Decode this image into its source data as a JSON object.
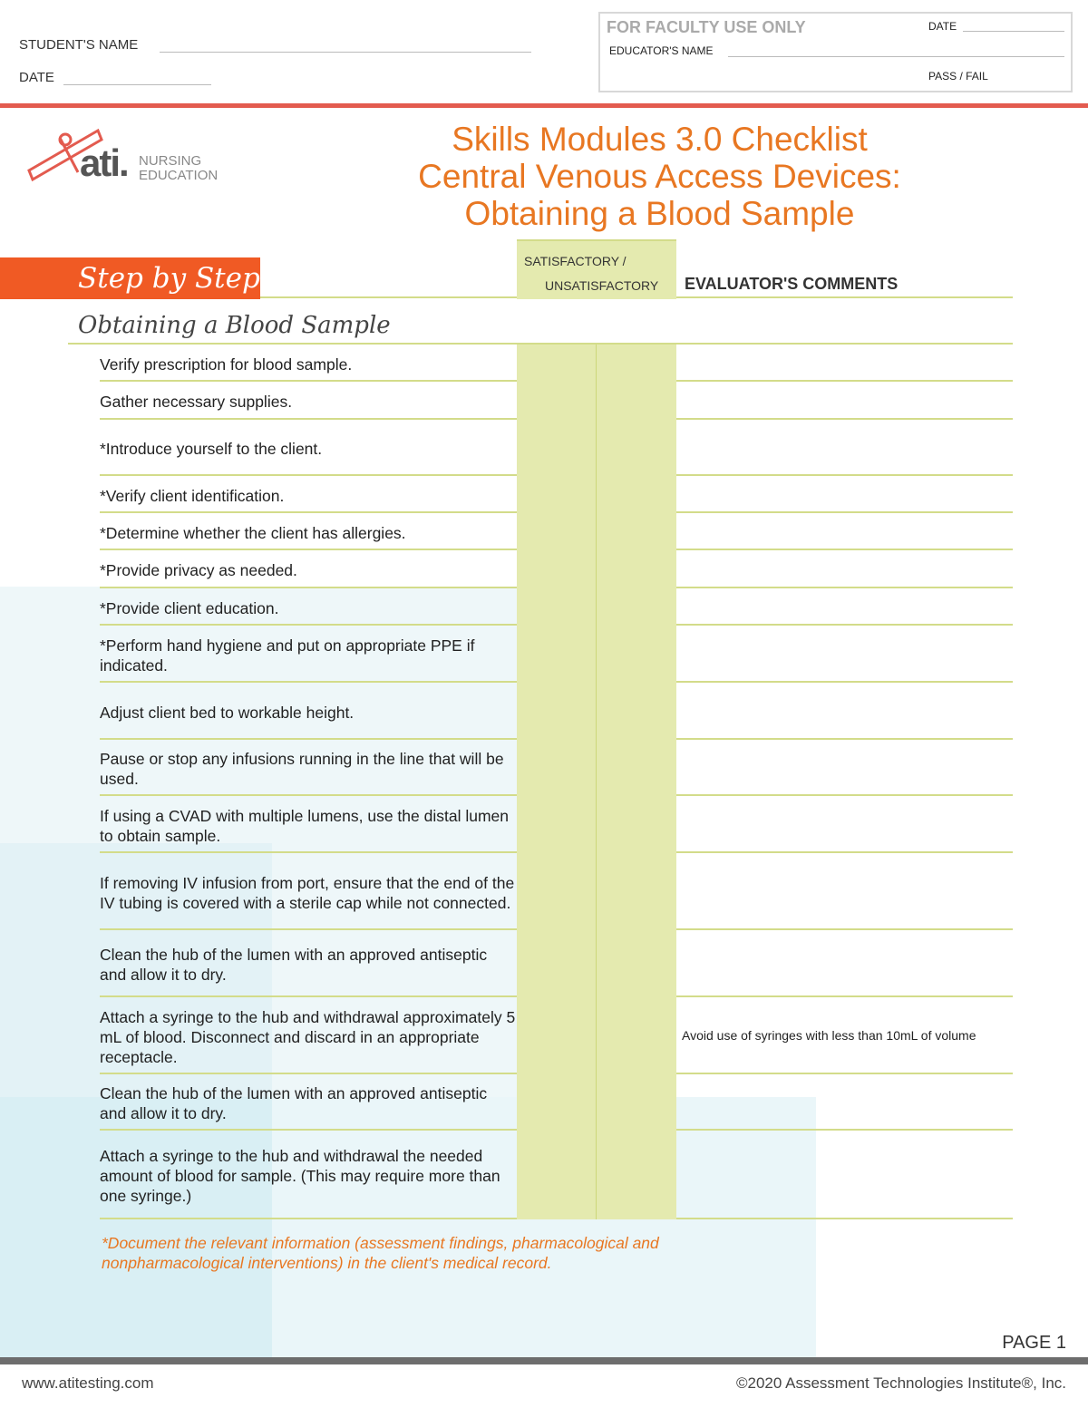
{
  "header": {
    "student_name_label": "STUDENT'S NAME",
    "date_label": "DATE"
  },
  "faculty": {
    "title": "FOR FACULTY USE ONLY",
    "date_label": "DATE",
    "educator_label": "EDUCATOR'S NAME",
    "pass_fail_label": "PASS / FAIL"
  },
  "logo": {
    "brand": "ati.",
    "line1": "NURSING",
    "line2": "EDUCATION"
  },
  "title": {
    "line1": "Skills Modules 3.0 Checklist",
    "line2": "Central Venous Access Devices:",
    "line3": "Obtaining a Blood Sample"
  },
  "table": {
    "step_heading": "Step by Step",
    "sat_label_1": "SATISFACTORY /",
    "sat_label_2": "UNSATISFACTORY",
    "comments_label": "EVALUATOR'S COMMENTS",
    "section": "Obtaining a Blood Sample",
    "rows": [
      {
        "step": "Verify prescription for blood sample.",
        "comment": ""
      },
      {
        "step": "Gather necessary supplies.",
        "comment": ""
      },
      {
        "step": "*Introduce yourself to the client.",
        "comment": ""
      },
      {
        "step": "*Verify client identification.",
        "comment": ""
      },
      {
        "step": "*Determine whether the client has allergies.",
        "comment": ""
      },
      {
        "step": "*Provide privacy as needed.",
        "comment": ""
      },
      {
        "step": "*Provide client education.",
        "comment": ""
      },
      {
        "step": "*Perform hand hygiene and put on appropriate PPE if indicated.",
        "comment": ""
      },
      {
        "step": "Adjust client bed to workable height.",
        "comment": ""
      },
      {
        "step": "Pause or stop any infusions running in the line that will be used.",
        "comment": ""
      },
      {
        "step": "If using a CVAD with multiple lumens, use the distal lumen to obtain sample.",
        "comment": ""
      },
      {
        "step": "If removing IV infusion from port, ensure that the end of the IV tubing is covered with a sterile cap while not connected.",
        "comment": ""
      },
      {
        "step": "Clean the hub of the lumen with an approved antiseptic and allow it to dry.",
        "comment": ""
      },
      {
        "step": "Attach a syringe to the hub and withdrawal approximately 5 mL of blood. Disconnect and discard in an appropriate receptacle.",
        "comment": "Avoid use of syringes with less than 10mL of volume"
      },
      {
        "step": "Clean the hub of the lumen with an approved antiseptic and allow it to dry.",
        "comment": ""
      },
      {
        "step": "Attach a syringe to the hub and withdrawal the needed amount of blood for sample. (This may require more than one syringe.)",
        "comment": ""
      }
    ]
  },
  "note": "*Document the relevant information (assessment findings, pharmacological and nonpharmacological interventions) in the client's medical record.",
  "footer": {
    "page": "PAGE 1",
    "website": "www.atitesting.com",
    "copyright": "©2020 Assessment Technologies Institute®, Inc."
  },
  "colors": {
    "accent_orange": "#e87722",
    "step_bar": "#f05a24",
    "red_bar": "#e35b4f",
    "sat_column": "#e4eaaf",
    "row_line": "#d3dc8a"
  }
}
